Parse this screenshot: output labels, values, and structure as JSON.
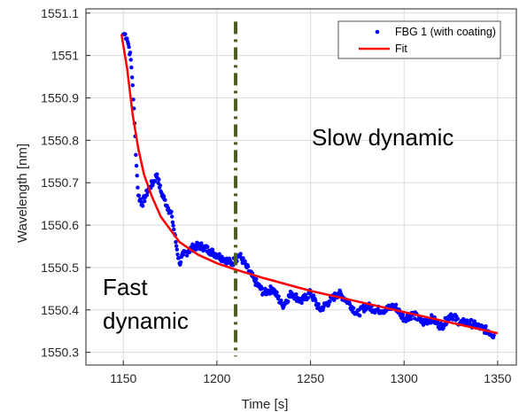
{
  "chart_data": {
    "type": "line",
    "title": "",
    "xlabel": "Time [s]",
    "ylabel": "Wavelength [nm]",
    "xlim": [
      1130,
      1360
    ],
    "ylim": [
      1550.27,
      1551.11
    ],
    "xticks": [
      1150,
      1200,
      1250,
      1300,
      1350
    ],
    "yticks": [
      1550.3,
      1550.4,
      1550.5,
      1550.6,
      1550.7,
      1550.8,
      1550.9,
      1551,
      1551.1
    ],
    "xtick_labels": [
      "1150",
      "1200",
      "1250",
      "1300",
      "1350"
    ],
    "ytick_labels": [
      "1550.3",
      "1550.4",
      "1550.5",
      "1550.6",
      "1550.7",
      "1550.8",
      "1550.9",
      "1551",
      "1551.1"
    ],
    "grid": true,
    "legend_position": "top-right",
    "series": [
      {
        "name": "FBG 1 (with coating)",
        "style": "markers",
        "color": "#0000ff",
        "x": [
          1150,
          1151,
          1152,
          1153,
          1154,
          1155,
          1156,
          1157,
          1158,
          1160,
          1162,
          1164,
          1166,
          1168,
          1170,
          1172,
          1174,
          1176,
          1178,
          1180,
          1182,
          1185,
          1188,
          1192,
          1196,
          1200,
          1204,
          1208,
          1212,
          1216,
          1220,
          1225,
          1230,
          1235,
          1240,
          1245,
          1250,
          1255,
          1260,
          1265,
          1270,
          1275,
          1280,
          1285,
          1290,
          1295,
          1300,
          1305,
          1310,
          1315,
          1320,
          1325,
          1330,
          1335,
          1340,
          1345,
          1348
        ],
        "y": [
          1551.05,
          1551.05,
          1551.04,
          1551.02,
          1550.99,
          1550.93,
          1550.84,
          1550.74,
          1550.67,
          1550.65,
          1550.67,
          1550.69,
          1550.7,
          1550.72,
          1550.68,
          1550.66,
          1550.64,
          1550.62,
          1550.56,
          1550.51,
          1550.53,
          1550.54,
          1550.55,
          1550.55,
          1550.54,
          1550.53,
          1550.52,
          1550.51,
          1550.53,
          1550.5,
          1550.47,
          1550.44,
          1550.45,
          1550.41,
          1550.44,
          1550.42,
          1550.44,
          1550.4,
          1550.42,
          1550.44,
          1550.42,
          1550.39,
          1550.41,
          1550.4,
          1550.4,
          1550.41,
          1550.38,
          1550.39,
          1550.37,
          1550.38,
          1550.36,
          1550.39,
          1550.37,
          1550.37,
          1550.36,
          1550.35,
          1550.34
        ]
      },
      {
        "name": "Fit",
        "style": "line",
        "color": "#ff0000",
        "x": [
          1149,
          1152,
          1155,
          1158,
          1161,
          1165,
          1170,
          1175,
          1180,
          1190,
          1200,
          1210,
          1225,
          1250,
          1275,
          1300,
          1325,
          1350
        ],
        "y": [
          1551.05,
          1550.97,
          1550.86,
          1550.78,
          1550.72,
          1550.67,
          1550.62,
          1550.59,
          1550.56,
          1550.53,
          1550.51,
          1550.495,
          1550.475,
          1550.445,
          1550.42,
          1550.395,
          1550.37,
          1550.345
        ]
      }
    ],
    "vline": {
      "x": 1210,
      "y_from": 1550.29,
      "y_to": 1551.08,
      "style": "dash-dot",
      "color": "#4b5e20"
    },
    "annotations": [
      "Slow dynamic",
      "Fast",
      "dynamic"
    ],
    "axes_color": "#262626",
    "grid_color": "#dcdcdc"
  }
}
